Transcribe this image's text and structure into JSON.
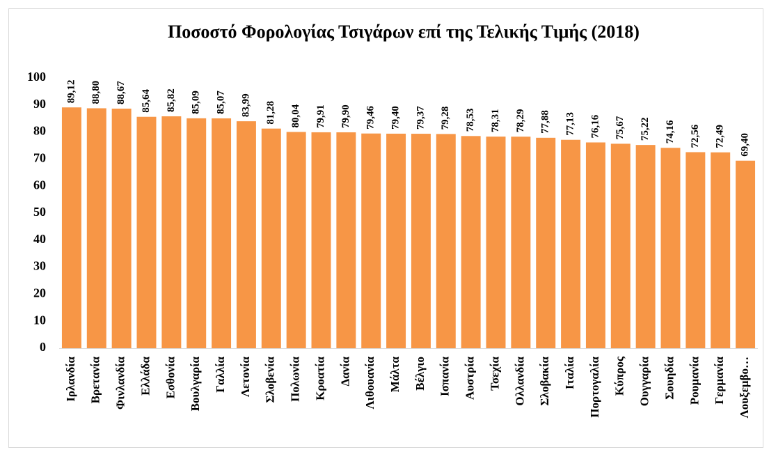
{
  "chart_data": {
    "type": "bar",
    "title": "Ποσοστό Φορολογίας Τσιγάρων επί της Τελικής Τιμής (2018)",
    "categories": [
      "Ιρλανδία",
      "Βρετανία",
      "Φινλανδία",
      "Ελλάδα",
      "Εσθονία",
      "Βουλγαρία",
      "Γαλλία",
      "Λετονία",
      "Σλοβενία",
      "Πολωνία",
      "Κροατία",
      "Δανία",
      "Λιθουανία",
      "Μάλτα",
      "Βέλγιο",
      "Ισπανία",
      "Αυστρία",
      "Τσεχία",
      "Ολλανδία",
      "Σλοβακία",
      "Ιταλία",
      "Πορτογαλία",
      "Κύπρος",
      "Ουγγαρία",
      "Σουηδία",
      "Ρουμανία",
      "Γερμανία",
      "Λουξεμβο…"
    ],
    "values": [
      89.12,
      88.8,
      88.67,
      85.64,
      85.82,
      85.09,
      85.07,
      83.99,
      81.28,
      80.04,
      79.91,
      79.9,
      79.46,
      79.4,
      79.37,
      79.28,
      78.53,
      78.31,
      78.29,
      77.88,
      77.13,
      76.16,
      75.67,
      75.22,
      74.16,
      72.56,
      72.49,
      69.4
    ],
    "value_labels": [
      "89,12",
      "88,80",
      "88,67",
      "85,64",
      "85,82",
      "85,09",
      "85,07",
      "83,99",
      "81,28",
      "80,04",
      "79,91",
      "79,90",
      "79,46",
      "79,40",
      "79,37",
      "79,28",
      "78,53",
      "78,31",
      "78,29",
      "77,88",
      "77,13",
      "76,16",
      "75,67",
      "75,22",
      "74,16",
      "72,56",
      "72,49",
      "69,40"
    ],
    "color": "#f79646",
    "ylim": [
      0,
      100
    ],
    "yticks": [
      0,
      10,
      20,
      30,
      40,
      50,
      60,
      70,
      80,
      90,
      100
    ],
    "grid": false
  }
}
